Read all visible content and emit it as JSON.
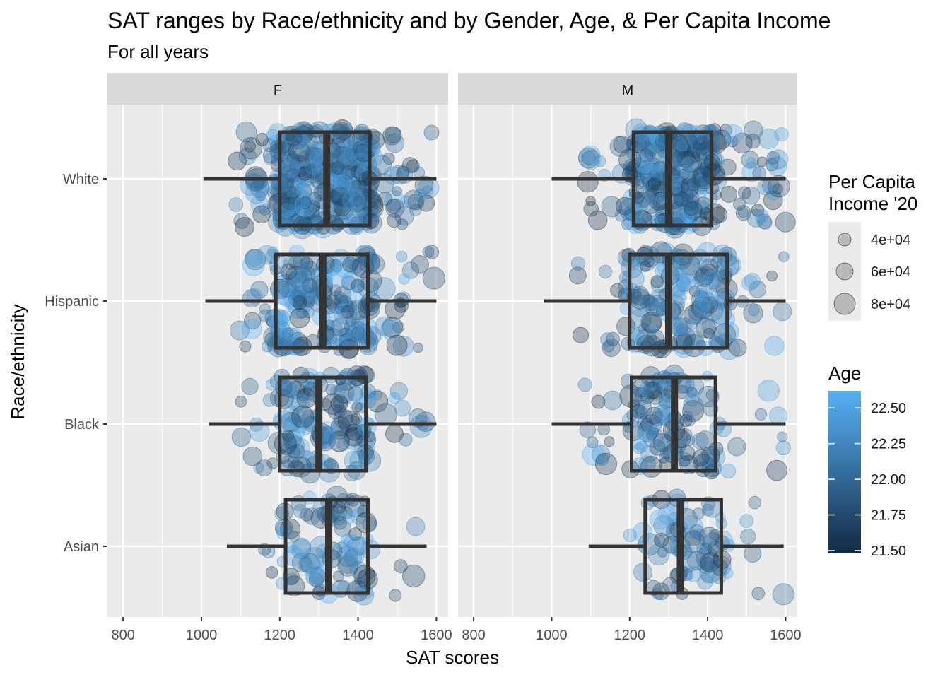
{
  "chart_data": {
    "type": "boxplot",
    "title": "SAT ranges by Race/ethnicity and by Gender, Age, & Per Capita Income",
    "subtitle": "For all years",
    "xlabel": "SAT scores",
    "ylabel": "Race/ethnicity",
    "xlim": [
      760,
      1630
    ],
    "xticks": [
      "800",
      "1000",
      "1200",
      "1400",
      "1600"
    ],
    "categories": [
      "White",
      "Hispanic",
      "Black",
      "Asian"
    ],
    "grid": true,
    "legend_position": "right",
    "colors": {
      "panel_bg": "#ebebeb",
      "strip_bg": "#d9d9d9",
      "grid": "#ffffff",
      "box": "#333333",
      "age_low": "#132b43",
      "age_high": "#56b1f7",
      "point_fill": "#4a87c7",
      "size_legend_point": "#999999"
    },
    "panels": [
      {
        "label": "F",
        "boxes": [
          {
            "category": "White",
            "whisker_low": 1005,
            "q1": 1200,
            "median": 1320,
            "q3": 1430,
            "whisker_high": 1600
          },
          {
            "category": "Hispanic",
            "whisker_low": 1010,
            "q1": 1190,
            "median": 1310,
            "q3": 1425,
            "whisker_high": 1600
          },
          {
            "category": "Black",
            "whisker_low": 1020,
            "q1": 1200,
            "median": 1300,
            "q3": 1420,
            "whisker_high": 1600
          },
          {
            "category": "Asian",
            "whisker_low": 1065,
            "q1": 1215,
            "median": 1325,
            "q3": 1425,
            "whisker_high": 1575
          }
        ]
      },
      {
        "label": "M",
        "boxes": [
          {
            "category": "White",
            "whisker_low": 1000,
            "q1": 1210,
            "median": 1300,
            "q3": 1410,
            "whisker_high": 1600
          },
          {
            "category": "Hispanic",
            "whisker_low": 980,
            "q1": 1200,
            "median": 1300,
            "q3": 1450,
            "whisker_high": 1600
          },
          {
            "category": "Black",
            "whisker_low": 1000,
            "q1": 1205,
            "median": 1315,
            "q3": 1420,
            "whisker_high": 1600
          },
          {
            "category": "Asian",
            "whisker_low": 1095,
            "q1": 1240,
            "median": 1330,
            "q3": 1435,
            "whisker_high": 1595
          }
        ]
      }
    ],
    "points_per_category": {
      "White": 360,
      "Hispanic": 200,
      "Black": 150,
      "Asian": 95
    },
    "legend_size": {
      "title": "Per Capita\nIncome '20",
      "labels": [
        "4e+04",
        "6e+04",
        "8e+04"
      ],
      "values": [
        40000,
        60000,
        80000
      ]
    },
    "legend_color": {
      "title": "Age",
      "labels": [
        "22.50",
        "22.25",
        "22.00",
        "21.75",
        "21.50"
      ],
      "values": [
        22.5,
        22.25,
        22.0,
        21.75,
        21.5
      ],
      "range": [
        21.48,
        22.62
      ]
    }
  }
}
